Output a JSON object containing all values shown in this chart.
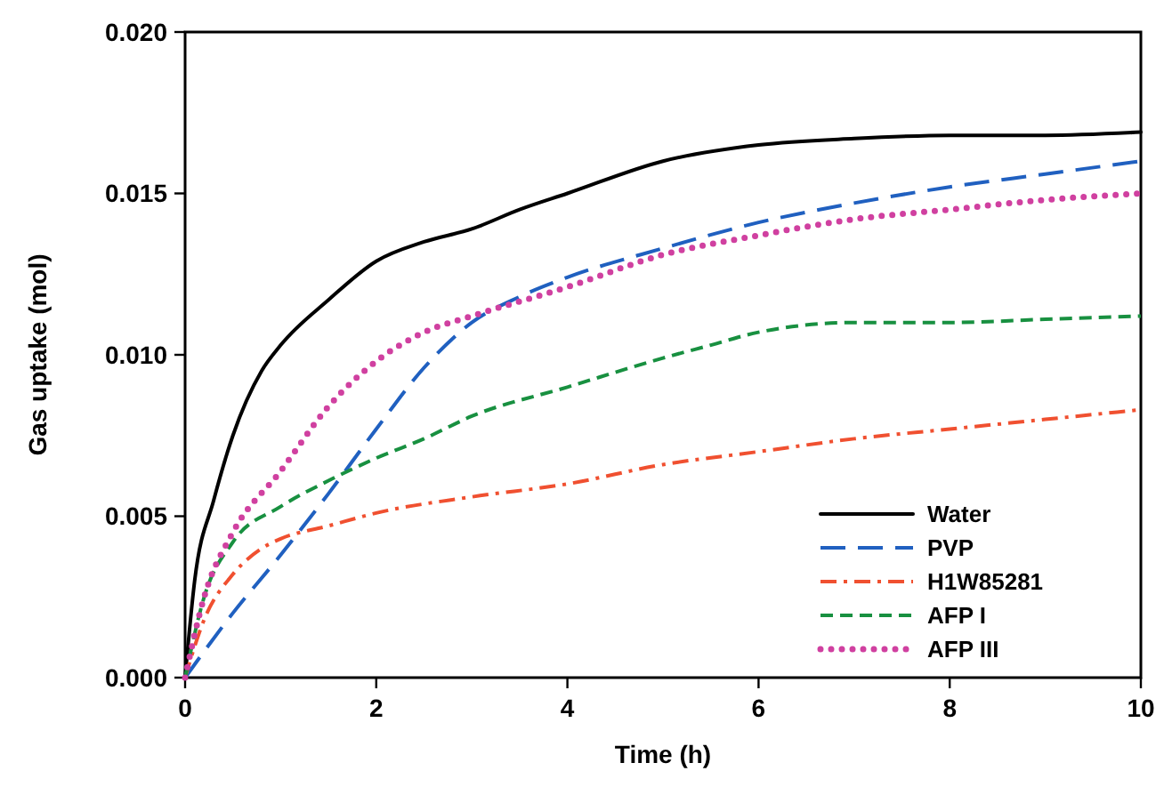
{
  "chart_data": {
    "type": "line",
    "xlabel": "Time (h)",
    "ylabel": "Gas uptake (mol)",
    "xlim": [
      0,
      10
    ],
    "ylim": [
      0,
      0.02
    ],
    "xticks": [
      0,
      2,
      4,
      6,
      8,
      10
    ],
    "yticks": [
      {
        "value": 0,
        "label": "0.000"
      },
      {
        "value": 0.005,
        "label": "0.005"
      },
      {
        "value": 0.01,
        "label": "0.010"
      },
      {
        "value": 0.015,
        "label": "0.015"
      },
      {
        "value": 0.02,
        "label": "0.020"
      }
    ],
    "legend": "bottom right",
    "grid": false,
    "marker": "none",
    "series": [
      {
        "name": "Water",
        "color": "#000000",
        "line_style": "solid",
        "x": [
          0,
          0.1,
          0.3,
          0.5,
          0.8,
          1,
          1.5,
          2,
          2.5,
          3,
          3.5,
          4,
          5,
          6,
          7,
          8,
          9,
          10
        ],
        "values": [
          0,
          0.003,
          0.0055,
          0.0075,
          0.0095,
          0.0103,
          0.0117,
          0.0129,
          0.0135,
          0.0139,
          0.0145,
          0.015,
          0.016,
          0.0165,
          0.0167,
          0.0168,
          0.0168,
          0.0169
        ]
      },
      {
        "name": "PVP",
        "color": "#2060c0",
        "line_style": "longdash",
        "x": [
          0,
          0.5,
          1,
          1.5,
          2,
          2.5,
          3,
          3.5,
          4,
          5,
          6,
          7,
          8,
          9,
          10
        ],
        "values": [
          0,
          0.002,
          0.0038,
          0.0057,
          0.0077,
          0.0096,
          0.011,
          0.0118,
          0.0124,
          0.0133,
          0.0141,
          0.0147,
          0.0152,
          0.0156,
          0.016
        ]
      },
      {
        "name": "H1W85281",
        "color": "#f05030",
        "line_style": "dashdot",
        "x": [
          0,
          0.2,
          0.5,
          0.8,
          1,
          1.5,
          2,
          3,
          4,
          5,
          6,
          7,
          8,
          9,
          10
        ],
        "values": [
          0,
          0.0018,
          0.0032,
          0.004,
          0.0043,
          0.0047,
          0.0051,
          0.0056,
          0.006,
          0.0066,
          0.007,
          0.0074,
          0.0077,
          0.008,
          0.0083
        ]
      },
      {
        "name": "AFP I",
        "color": "#189040",
        "line_style": "dashed",
        "x": [
          0,
          0.2,
          0.5,
          1,
          1.5,
          2,
          2.5,
          3,
          4,
          5,
          5.5,
          6,
          7,
          8,
          9,
          10
        ],
        "values": [
          0,
          0.0025,
          0.0042,
          0.0053,
          0.0061,
          0.0068,
          0.0074,
          0.0081,
          0.009,
          0.0099,
          0.0103,
          0.0107,
          0.011,
          0.011,
          0.0111,
          0.0112
        ]
      },
      {
        "name": "AFP III",
        "color": "#d040a0",
        "line_style": "dotted",
        "x": [
          0,
          0.2,
          0.5,
          1,
          1.5,
          2,
          2.5,
          3,
          4,
          5,
          6,
          7,
          8,
          9,
          10
        ],
        "values": [
          0,
          0.0025,
          0.0045,
          0.0064,
          0.0084,
          0.0098,
          0.0107,
          0.0112,
          0.0121,
          0.0131,
          0.0137,
          0.0142,
          0.0145,
          0.0148,
          0.015
        ]
      }
    ]
  }
}
